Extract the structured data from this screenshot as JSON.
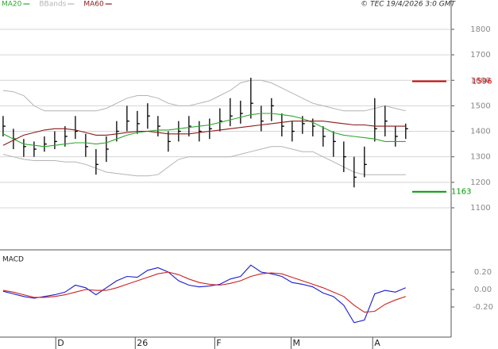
{
  "chart_data": [
    {
      "type": "ohlc",
      "source": "© TEC 19/4/2026 3:0 GMT",
      "x": [
        0,
        1,
        2,
        3,
        4,
        5,
        6,
        7,
        8,
        9,
        10,
        11,
        12,
        13,
        14,
        15,
        16,
        17,
        18,
        19,
        20,
        21,
        22,
        23,
        24,
        25,
        26,
        27,
        28,
        29,
        30,
        31,
        32,
        33,
        34,
        35,
        36,
        37,
        38,
        39
      ],
      "xlim": [
        -0.3,
        43.4
      ],
      "high": [
        1460,
        1410,
        1370,
        1360,
        1380,
        1400,
        1420,
        1460,
        1390,
        1330,
        1380,
        1440,
        1500,
        1480,
        1510,
        1460,
        1400,
        1440,
        1460,
        1440,
        1450,
        1490,
        1530,
        1520,
        1610,
        1500,
        1530,
        1470,
        1440,
        1460,
        1450,
        1420,
        1400,
        1360,
        1300,
        1340,
        1530,
        1500,
        1420,
        1430
      ],
      "low": [
        1380,
        1330,
        1300,
        1300,
        1320,
        1330,
        1340,
        1370,
        1300,
        1230,
        1280,
        1360,
        1400,
        1390,
        1410,
        1380,
        1320,
        1360,
        1380,
        1360,
        1370,
        1400,
        1420,
        1430,
        1450,
        1400,
        1440,
        1380,
        1360,
        1390,
        1380,
        1340,
        1300,
        1240,
        1180,
        1220,
        1360,
        1380,
        1340,
        1370
      ],
      "close": [
        1420,
        1370,
        1340,
        1330,
        1350,
        1360,
        1380,
        1400,
        1340,
        1270,
        1330,
        1400,
        1440,
        1430,
        1460,
        1420,
        1360,
        1400,
        1420,
        1400,
        1410,
        1440,
        1460,
        1470,
        1510,
        1440,
        1500,
        1420,
        1400,
        1430,
        1420,
        1380,
        1360,
        1300,
        1220,
        1270,
        1410,
        1440,
        1380,
        1410
      ],
      "color": "#000000",
      "series": [
        {
          "name": "MA20",
          "color": "#2ea82e",
          "values": [
            1390,
            1370,
            1350,
            1345,
            1340,
            1345,
            1350,
            1355,
            1355,
            1350,
            1355,
            1370,
            1385,
            1395,
            1400,
            1405,
            1405,
            1410,
            1415,
            1420,
            1425,
            1435,
            1445,
            1455,
            1465,
            1470,
            1470,
            1465,
            1460,
            1450,
            1435,
            1415,
            1395,
            1385,
            1380,
            1375,
            1370,
            1360,
            1360,
            1360
          ]
        },
        {
          "name": "BBands",
          "color": "#b4b4b4",
          "upper": [
            1560,
            1555,
            1540,
            1500,
            1480,
            1480,
            1480,
            1480,
            1480,
            1480,
            1490,
            1510,
            1530,
            1540,
            1540,
            1530,
            1510,
            1500,
            1500,
            1510,
            1520,
            1540,
            1560,
            1590,
            1600,
            1600,
            1590,
            1570,
            1550,
            1530,
            1510,
            1500,
            1490,
            1480,
            1480,
            1480,
            1490,
            1500,
            1490,
            1480
          ],
          "lower": [
            1310,
            1300,
            1290,
            1285,
            1285,
            1285,
            1280,
            1280,
            1270,
            1255,
            1240,
            1235,
            1230,
            1225,
            1225,
            1230,
            1260,
            1290,
            1300,
            1300,
            1300,
            1300,
            1300,
            1310,
            1320,
            1330,
            1340,
            1340,
            1330,
            1320,
            1320,
            1300,
            1280,
            1260,
            1240,
            1230,
            1230,
            1230,
            1230,
            1230
          ]
        },
        {
          "name": "MA60",
          "color": "#8b1a1a",
          "values": [
            1345,
            1365,
            1385,
            1395,
            1405,
            1410,
            1410,
            1405,
            1395,
            1385,
            1385,
            1390,
            1395,
            1400,
            1400,
            1395,
            1390,
            1390,
            1390,
            1395,
            1400,
            1405,
            1410,
            1415,
            1420,
            1425,
            1430,
            1435,
            1440,
            1440,
            1440,
            1440,
            1435,
            1430,
            1425,
            1425,
            1420,
            1420,
            1420,
            1420
          ]
        }
      ],
      "levels": [
        {
          "value": 1596,
          "color": "#cc0000"
        },
        {
          "value": 1163,
          "color": "#009900"
        }
      ],
      "ylim": [
        935,
        1915
      ],
      "yticks": [
        1100,
        1200,
        1300,
        1400,
        1500,
        1600,
        1700,
        1800
      ],
      "grid": true
    },
    {
      "type": "line",
      "title": "MACD",
      "series": [
        {
          "color": "#1a1acc",
          "values": [
            -0.02,
            -0.05,
            -0.08,
            -0.1,
            -0.08,
            -0.06,
            -0.03,
            0.05,
            0.02,
            -0.06,
            0.02,
            0.1,
            0.15,
            0.14,
            0.22,
            0.25,
            0.2,
            0.1,
            0.05,
            0.03,
            0.04,
            0.06,
            0.12,
            0.15,
            0.28,
            0.2,
            0.18,
            0.15,
            0.08,
            0.06,
            0.03,
            -0.04,
            -0.08,
            -0.18,
            -0.38,
            -0.35,
            -0.05,
            -0.01,
            -0.03,
            0.02
          ]
        },
        {
          "color": "#cc2222",
          "values": [
            -0.01,
            -0.03,
            -0.06,
            -0.09,
            -0.09,
            -0.08,
            -0.06,
            -0.03,
            0.0,
            -0.01,
            -0.01,
            0.02,
            0.06,
            0.1,
            0.14,
            0.18,
            0.2,
            0.17,
            0.12,
            0.08,
            0.06,
            0.05,
            0.07,
            0.1,
            0.15,
            0.18,
            0.19,
            0.18,
            0.14,
            0.1,
            0.06,
            0.02,
            -0.03,
            -0.08,
            -0.18,
            -0.26,
            -0.25,
            -0.17,
            -0.12,
            -0.08
          ]
        }
      ],
      "ylim": [
        -0.545,
        0.427
      ],
      "yticks": [
        {
          "value": 0.2,
          "label": "0.20"
        },
        {
          "value": 0,
          "label": "0.00"
        },
        {
          "value": -0.2,
          "label": "-0.20"
        }
      ],
      "xticks": [
        {
          "value": 5.1,
          "label": "D"
        },
        {
          "value": 12.8,
          "label": "26"
        },
        {
          "value": 20.5,
          "label": "F"
        },
        {
          "value": 27.9,
          "label": "M"
        },
        {
          "value": 35.8,
          "label": "A"
        }
      ]
    }
  ]
}
